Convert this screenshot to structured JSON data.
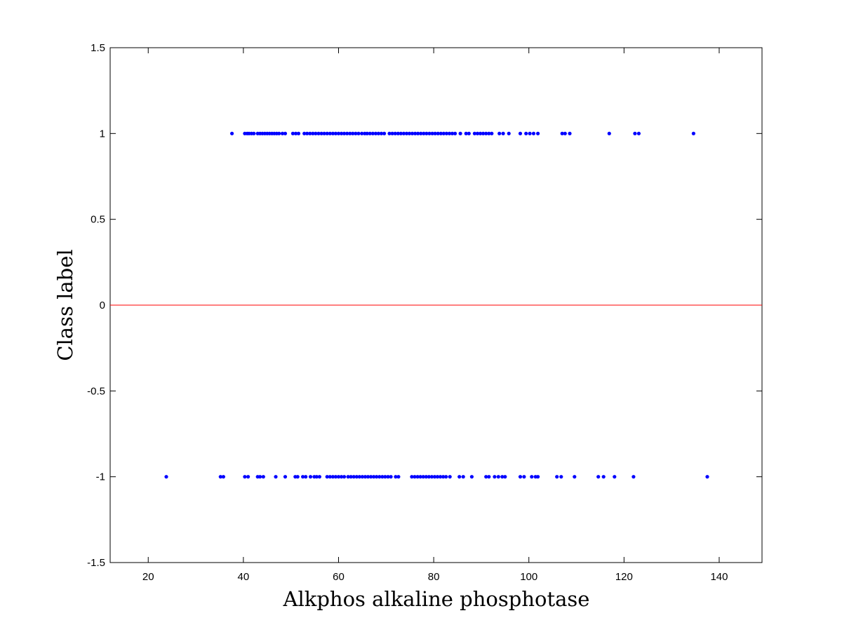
{
  "chart_data": {
    "type": "scatter",
    "title": "",
    "xlabel": "Alkphos alkaline phosphotase",
    "ylabel": "Class label",
    "xlim": [
      12,
      149
    ],
    "ylim": [
      -1.5,
      1.5
    ],
    "x_ticks": [
      20,
      40,
      60,
      80,
      100,
      120,
      140
    ],
    "x_tick_labels": [
      "20",
      "40",
      "60",
      "80",
      "100",
      "120",
      "140"
    ],
    "y_ticks": [
      1.5,
      1,
      0.5,
      0,
      -0.5,
      -1,
      -1.5
    ],
    "y_tick_labels": [
      "1.5",
      "1",
      "0.5",
      "0",
      "-0.5",
      "-1",
      "-1.5"
    ],
    "grid": false,
    "marker_color": "#0000ff",
    "reference_line": {
      "y": 0,
      "color": "#ff0000"
    },
    "series": [
      {
        "y": 1,
        "x": [
          37.6,
          40.3,
          40.8,
          41.2,
          41.7,
          42.2,
          43.0,
          43.5,
          44.0,
          44.5,
          45.0,
          45.5,
          46.0,
          46.5,
          47.0,
          47.5,
          48.2,
          48.8,
          50.4,
          51.0,
          51.6,
          52.8,
          53.4,
          54.0,
          54.6,
          55.2,
          55.8,
          56.4,
          57.0,
          57.6,
          58.2,
          58.8,
          59.4,
          60.0,
          60.6,
          61.2,
          61.8,
          62.4,
          63.0,
          63.6,
          64.2,
          64.9,
          65.5,
          66.0,
          66.6,
          67.2,
          67.8,
          68.4,
          69.0,
          69.6,
          70.7,
          71.3,
          71.9,
          72.5,
          73.1,
          73.7,
          74.3,
          74.9,
          75.5,
          76.1,
          76.7,
          77.3,
          77.9,
          78.5,
          79.1,
          79.7,
          80.3,
          80.9,
          81.5,
          82.1,
          82.7,
          83.3,
          83.9,
          84.5,
          85.6,
          86.8,
          87.4,
          88.6,
          89.2,
          89.8,
          90.4,
          91.0,
          91.6,
          92.2,
          93.8,
          94.6,
          95.8,
          98.2,
          99.4,
          100.2,
          101.0,
          101.9,
          107.0,
          107.6,
          108.6,
          116.9,
          122.3,
          123.1,
          134.6
        ]
      },
      {
        "y": -1,
        "x": [
          23.8,
          35.2,
          35.8,
          40.3,
          41.0,
          43.0,
          43.5,
          44.2,
          46.8,
          48.8,
          50.9,
          51.4,
          52.5,
          53.1,
          54.1,
          54.9,
          55.4,
          56.0,
          57.6,
          58.2,
          58.8,
          59.4,
          60.0,
          60.6,
          61.2,
          62.0,
          62.6,
          63.2,
          63.8,
          64.4,
          65.0,
          65.6,
          66.2,
          66.8,
          67.4,
          68.0,
          68.6,
          69.2,
          69.8,
          70.4,
          71.0,
          72.0,
          72.6,
          75.4,
          76.0,
          76.6,
          77.2,
          77.8,
          78.4,
          79.0,
          79.6,
          80.2,
          80.8,
          81.4,
          82.0,
          82.6,
          83.4,
          85.4,
          86.2,
          88.0,
          91.0,
          91.6,
          92.8,
          93.6,
          94.4,
          95.0,
          98.2,
          99.0,
          100.6,
          101.4,
          101.9,
          105.9,
          106.8,
          109.6,
          114.6,
          115.7,
          118.0,
          122.0,
          137.5
        ]
      }
    ]
  }
}
